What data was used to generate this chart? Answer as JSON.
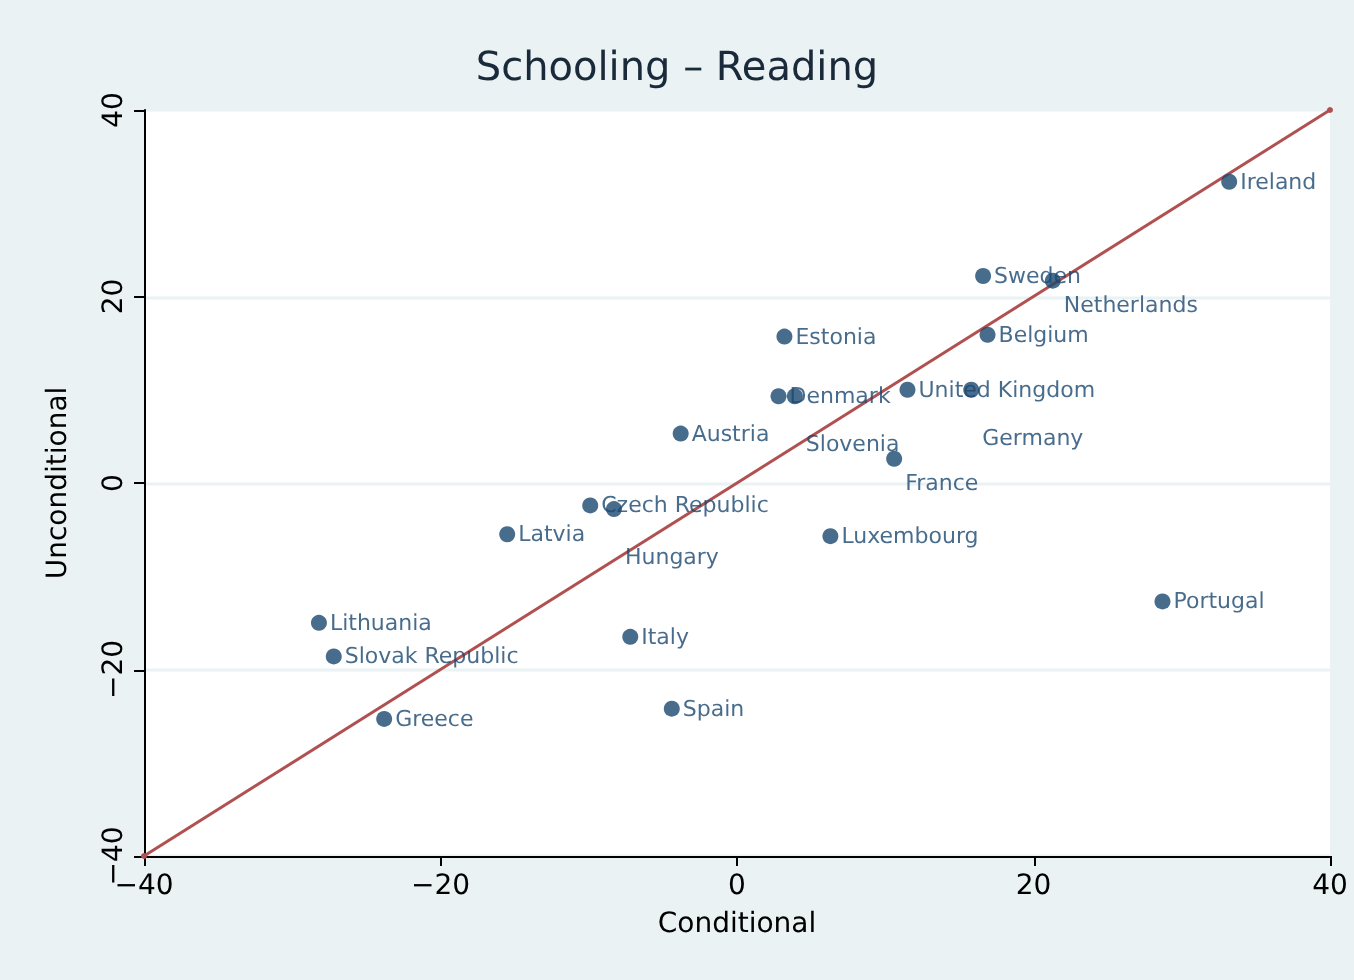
{
  "chart_data": {
    "type": "scatter",
    "title": "Schooling – Reading",
    "xlabel": "Conditional",
    "ylabel": "Unconditional",
    "xlim": [
      -40,
      40
    ],
    "xticks": [
      -40,
      -20,
      0,
      20,
      40
    ],
    "ylim": [
      -40,
      40
    ],
    "yticks": [
      -40,
      -20,
      0,
      20,
      40
    ],
    "grid": "y",
    "marker": "circle",
    "series": [
      {
        "type": "scatter",
        "color": "#1a476f",
        "x": [
          33.2,
          16.6,
          21.3,
          3.2,
          16.9,
          2.8,
          3.9,
          11.5,
          15.8,
          -3.8,
          10.6,
          -9.9,
          -8.3,
          -15.5,
          6.3,
          28.7,
          -28.2,
          -27.2,
          -7.2,
          -4.4,
          -23.8
        ],
        "values": [
          32.3,
          22.2,
          21.7,
          15.7,
          15.9,
          9.3,
          9.3,
          10.0,
          10.0,
          5.3,
          2.6,
          -2.4,
          -2.8,
          -5.5,
          -5.7,
          -12.7,
          -15.0,
          -18.6,
          -16.5,
          -24.2,
          -25.3
        ]
      },
      {
        "type": "line",
        "color": "#b05050",
        "x": [
          -40,
          40
        ],
        "values": [
          -40,
          40
        ]
      }
    ],
    "annotations": [
      {
        "text": "Ireland",
        "x": 33.2,
        "y": 32.3
      },
      {
        "text": "Sweden",
        "x": 16.6,
        "y": 22.2
      },
      {
        "text": "Netherlands",
        "x": 21.3,
        "y": 21.7
      },
      {
        "text": "Estonia",
        "x": 3.2,
        "y": 15.7
      },
      {
        "text": "Belgium",
        "x": 16.9,
        "y": 15.9
      },
      {
        "text": "Denmark",
        "x": 2.8,
        "y": 9.3
      },
      {
        "text": "Slovenia",
        "x": 3.9,
        "y": 9.3
      },
      {
        "text": "United Kingdom",
        "x": 11.5,
        "y": 10.0
      },
      {
        "text": "Germany",
        "x": 15.8,
        "y": 10.0
      },
      {
        "text": "Austria",
        "x": -3.8,
        "y": 5.3
      },
      {
        "text": "France",
        "x": 10.6,
        "y": 2.6
      },
      {
        "text": "Czech Republic",
        "x": -9.9,
        "y": -2.4
      },
      {
        "text": "Hungary",
        "x": -8.3,
        "y": -2.8
      },
      {
        "text": "Latvia",
        "x": -15.5,
        "y": -5.5
      },
      {
        "text": "Luxembourg",
        "x": 6.3,
        "y": -5.7
      },
      {
        "text": "Portugal",
        "x": 28.7,
        "y": -12.7
      },
      {
        "text": "Lithuania",
        "x": -28.2,
        "y": -15.0
      },
      {
        "text": "Slovak Republic",
        "x": -27.2,
        "y": -18.6
      },
      {
        "text": "Italy",
        "x": -7.2,
        "y": -16.5
      },
      {
        "text": "Spain",
        "x": -4.4,
        "y": -24.2
      },
      {
        "text": "Greece",
        "x": -23.8,
        "y": -25.3
      }
    ]
  }
}
